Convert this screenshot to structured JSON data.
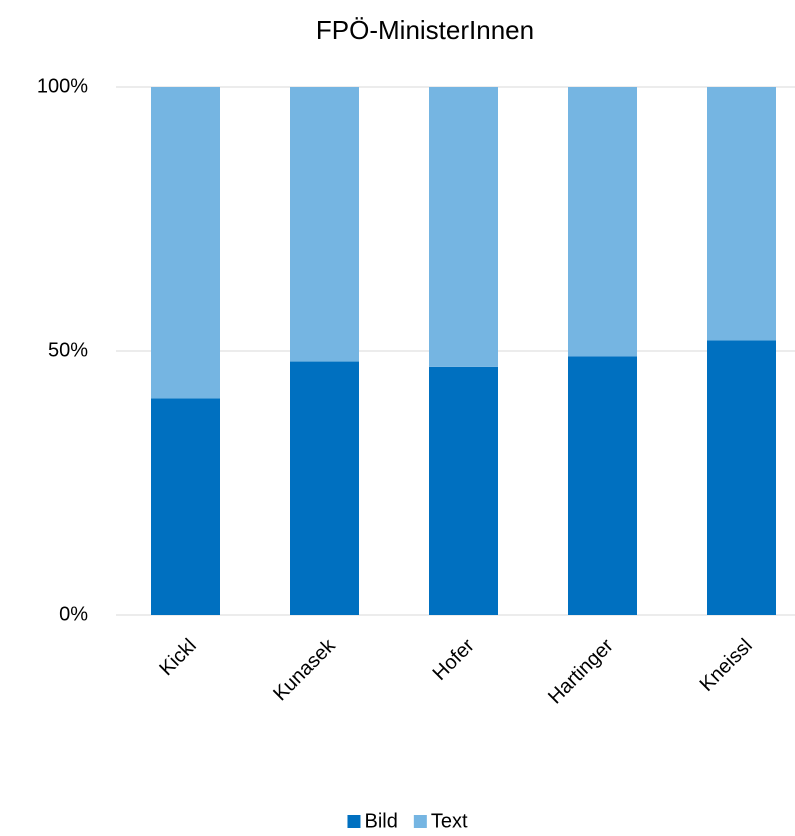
{
  "chart_data": {
    "type": "stacked_bar",
    "title": "FPÖ-MinisterInnen",
    "categories": [
      "Kickl",
      "Kunasek",
      "Hofer",
      "Hartinger",
      "Kneissl"
    ],
    "series": [
      {
        "name": "Bild",
        "color": "#0070c0",
        "values": [
          41,
          48,
          47,
          49,
          52
        ]
      },
      {
        "name": "Text",
        "color": "#75b5e2",
        "values": [
          59,
          52,
          53,
          51,
          48
        ]
      }
    ],
    "ylim": [
      0,
      100
    ],
    "yticks": [
      {
        "value": 0,
        "label": "0%"
      },
      {
        "value": 50,
        "label": "50%"
      },
      {
        "value": 100,
        "label": "100%"
      }
    ],
    "grid": true,
    "legend": "bottom"
  }
}
